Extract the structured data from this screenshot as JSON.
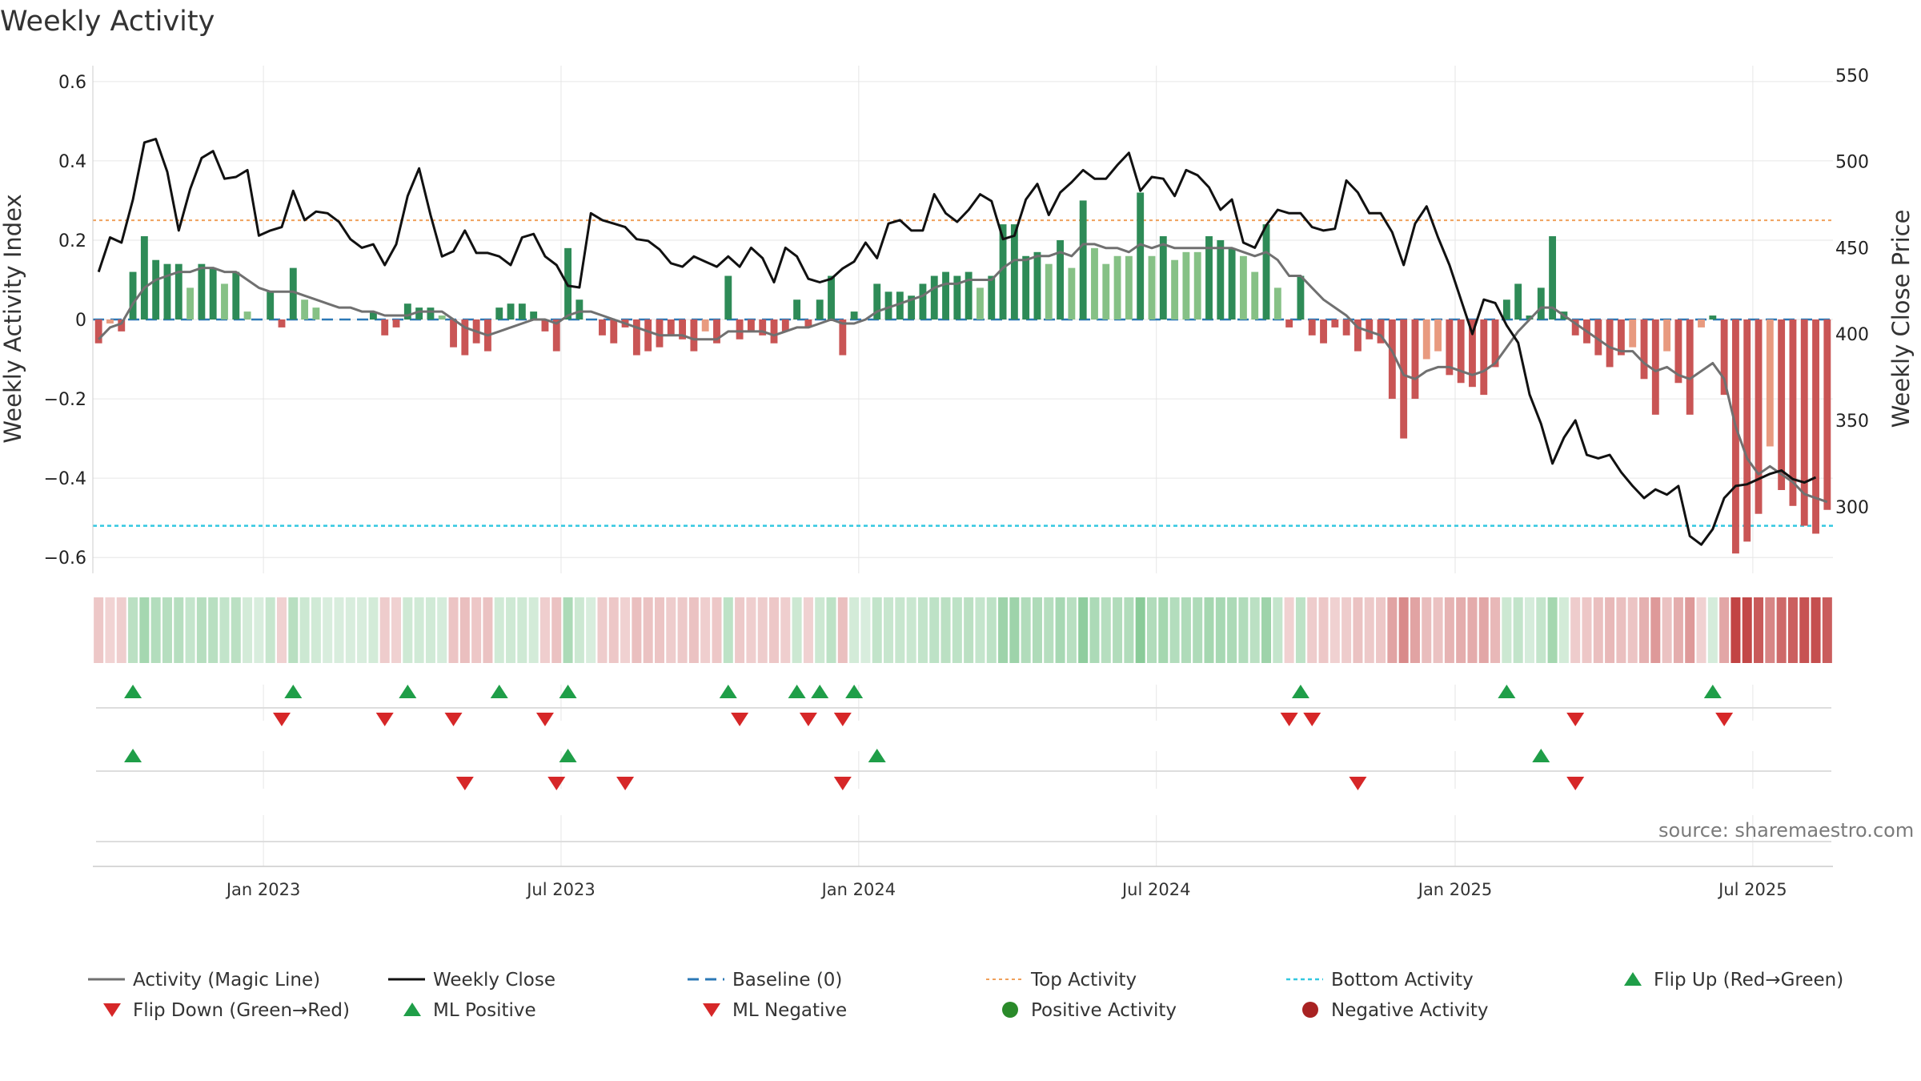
{
  "chart_data": {
    "type": "bar+line",
    "title": "Weekly Activity",
    "ylabel_left": "Weekly Activity Index",
    "ylabel_right": "Weekly Close Price",
    "left_ticks": [
      {
        "value": 0.6,
        "label": "0.6"
      },
      {
        "value": 0.4,
        "label": "0.4"
      },
      {
        "value": 0.2,
        "label": "0.2"
      },
      {
        "value": 0.0,
        "label": "0"
      },
      {
        "value": -0.2,
        "label": "−0.2"
      },
      {
        "value": -0.4,
        "label": "−0.4"
      },
      {
        "value": -0.6,
        "label": "−0.6"
      }
    ],
    "right_ticks": [
      {
        "value": 550,
        "label": "550"
      },
      {
        "value": 500,
        "label": "500"
      },
      {
        "value": 450,
        "label": "450"
      },
      {
        "value": 400,
        "label": "400"
      },
      {
        "value": 350,
        "label": "350"
      },
      {
        "value": 300,
        "label": "300"
      }
    ],
    "ylim_left": [
      -0.64,
      0.64
    ],
    "ylim_right": [
      261.4,
      555.5
    ],
    "x_tick_labels": [
      {
        "week": 14.4,
        "label": "Jan 2023"
      },
      {
        "week": 40.4,
        "label": "Jul 2023"
      },
      {
        "week": 66.4,
        "label": "Jan 2024"
      },
      {
        "week": 92.4,
        "label": "Jul 2024"
      },
      {
        "week": 118.5,
        "label": "Jan 2025"
      },
      {
        "week": 144.5,
        "label": "Jul 2025"
      }
    ],
    "reference_lines": {
      "top_activity": 0.25,
      "bottom_activity": -0.52,
      "baseline": 0
    },
    "source": "source: sharemaestro.com",
    "activity": [
      -0.06,
      -0.01,
      -0.03,
      0.12,
      0.21,
      0.15,
      0.14,
      0.14,
      0.08,
      0.14,
      0.13,
      0.09,
      0.12,
      0.02,
      0.0,
      0.07,
      -0.02,
      0.13,
      0.05,
      0.03,
      0.0,
      0.0,
      0.0,
      0.0,
      0.02,
      -0.04,
      -0.02,
      0.04,
      0.03,
      0.03,
      0.01,
      -0.07,
      -0.09,
      -0.06,
      -0.08,
      0.03,
      0.04,
      0.04,
      0.02,
      -0.03,
      -0.08,
      0.18,
      0.05,
      0.0,
      -0.04,
      -0.06,
      -0.02,
      -0.09,
      -0.08,
      -0.07,
      -0.04,
      -0.05,
      -0.08,
      -0.03,
      -0.06,
      0.11,
      -0.05,
      -0.03,
      -0.04,
      -0.06,
      -0.03,
      0.05,
      -0.02,
      0.05,
      0.11,
      -0.09,
      0.02,
      0.0,
      0.09,
      0.07,
      0.07,
      0.06,
      0.09,
      0.11,
      0.12,
      0.11,
      0.12,
      0.08,
      0.11,
      0.24,
      0.24,
      0.16,
      0.17,
      0.14,
      0.2,
      0.13,
      0.3,
      0.18,
      0.14,
      0.16,
      0.16,
      0.32,
      0.16,
      0.21,
      0.15,
      0.17,
      0.17,
      0.21,
      0.2,
      0.18,
      0.16,
      0.12,
      0.24,
      0.08,
      -0.02,
      0.11,
      -0.04,
      -0.06,
      -0.02,
      -0.04,
      -0.08,
      -0.05,
      -0.06,
      -0.2,
      -0.3,
      -0.2,
      -0.1,
      -0.08,
      -0.14,
      -0.16,
      -0.17,
      -0.19,
      -0.12,
      0.05,
      0.09,
      0.01,
      0.08,
      0.21,
      0.02,
      -0.04,
      -0.06,
      -0.09,
      -0.12,
      -0.09,
      -0.07,
      -0.15,
      -0.24,
      -0.08,
      -0.16,
      -0.24,
      -0.02,
      0.01,
      -0.19,
      -0.59,
      -0.56,
      -0.49,
      -0.32,
      -0.43,
      -0.47,
      -0.52,
      -0.54,
      -0.48
    ],
    "magic_line": [
      -0.05,
      -0.02,
      -0.01,
      0.04,
      0.08,
      0.1,
      0.11,
      0.12,
      0.12,
      0.13,
      0.13,
      0.12,
      0.12,
      0.1,
      0.08,
      0.07,
      0.07,
      0.07,
      0.06,
      0.05,
      0.04,
      0.03,
      0.03,
      0.02,
      0.02,
      0.01,
      0.01,
      0.01,
      0.02,
      0.02,
      0.02,
      0.0,
      -0.02,
      -0.03,
      -0.04,
      -0.03,
      -0.02,
      -0.01,
      0.0,
      0.0,
      -0.01,
      0.01,
      0.02,
      0.02,
      0.01,
      0.0,
      -0.01,
      -0.02,
      -0.03,
      -0.04,
      -0.04,
      -0.04,
      -0.05,
      -0.05,
      -0.05,
      -0.03,
      -0.03,
      -0.03,
      -0.03,
      -0.04,
      -0.03,
      -0.02,
      -0.02,
      -0.01,
      0.0,
      -0.01,
      -0.01,
      0.0,
      0.02,
      0.03,
      0.04,
      0.05,
      0.06,
      0.08,
      0.09,
      0.09,
      0.1,
      0.1,
      0.1,
      0.13,
      0.15,
      0.15,
      0.16,
      0.16,
      0.17,
      0.16,
      0.19,
      0.19,
      0.18,
      0.18,
      0.17,
      0.19,
      0.18,
      0.19,
      0.18,
      0.18,
      0.18,
      0.18,
      0.18,
      0.18,
      0.17,
      0.16,
      0.17,
      0.15,
      0.11,
      0.11,
      0.08,
      0.05,
      0.03,
      0.01,
      -0.02,
      -0.03,
      -0.04,
      -0.08,
      -0.14,
      -0.15,
      -0.13,
      -0.12,
      -0.12,
      -0.13,
      -0.14,
      -0.13,
      -0.11,
      -0.07,
      -0.03,
      0.0,
      0.03,
      0.03,
      0.01,
      -0.01,
      -0.03,
      -0.05,
      -0.07,
      -0.08,
      -0.08,
      -0.11,
      -0.13,
      -0.12,
      -0.14,
      -0.15,
      -0.13,
      -0.11,
      -0.15,
      -0.27,
      -0.35,
      -0.39,
      -0.37,
      -0.39,
      -0.41,
      -0.44,
      -0.45,
      -0.46
    ],
    "close": [
      436,
      456,
      453,
      478,
      511,
      513,
      494,
      460,
      484,
      502,
      506,
      490,
      491,
      495,
      457,
      460,
      462,
      483,
      466,
      471,
      470,
      465,
      455,
      450,
      452,
      440,
      452,
      480,
      496,
      469,
      445,
      448,
      460,
      447,
      447,
      445,
      440,
      456,
      458,
      445,
      440,
      428,
      427,
      470,
      466,
      464,
      462,
      455,
      454,
      449,
      441,
      439,
      445,
      442,
      439,
      445,
      439,
      450,
      444,
      430,
      450,
      445,
      432,
      430,
      432,
      438,
      442,
      453,
      444,
      464,
      466,
      460,
      460,
      481,
      470,
      465,
      472,
      481,
      477,
      455,
      457,
      478,
      487,
      469,
      482,
      488,
      495,
      490,
      490,
      498,
      505,
      483,
      491,
      490,
      480,
      495,
      492,
      485,
      472,
      478,
      453,
      450,
      463,
      472,
      470,
      470,
      462,
      460,
      461,
      489,
      482,
      470,
      470,
      459,
      440,
      464,
      474,
      456,
      440,
      420,
      400,
      420,
      418,
      405,
      395,
      365,
      348,
      325,
      340,
      350,
      330,
      328,
      330,
      320,
      312,
      305,
      310,
      307,
      312,
      283,
      278,
      287,
      305,
      312,
      313,
      316,
      319,
      321,
      316,
      314,
      317
    ]
  },
  "legend": [
    {
      "label": "Activity (Magic Line)",
      "marker": "grey-line"
    },
    {
      "label": "Weekly Close",
      "marker": "black-line"
    },
    {
      "label": "Baseline (0)",
      "marker": "blue-dashed-line"
    },
    {
      "label": "Top Activity",
      "marker": "orange-dotted-line"
    },
    {
      "label": "Bottom Activity",
      "marker": "cyan-dotted-line"
    },
    {
      "label": "Flip Up (Red→Green)",
      "marker": "green-up-triangle"
    },
    {
      "label": "Flip Down (Green→Red)",
      "marker": "red-down-triangle"
    },
    {
      "label": "ML Positive",
      "marker": "green-up-triangle"
    },
    {
      "label": "ML Negative",
      "marker": "red-down-triangle"
    },
    {
      "label": "Positive Activity",
      "marker": "green-circle"
    },
    {
      "label": "Negative Activity",
      "marker": "red-circle"
    }
  ],
  "colors": {
    "pos_strong": "#2e8b57",
    "pos_light": "#86c186",
    "neg_strong": "#c95555",
    "neg_light": "#e89a7f",
    "close": "#111111",
    "magic": "#707070",
    "baseline": "#2b78b6",
    "top": "#f0a05a",
    "bottom": "#33c8e0",
    "flip_up": "#1f9e48",
    "flip_down": "#d62728",
    "grid": "#e6e6e6",
    "axis": "#cccccc",
    "pos_dot": "#2a8a2a",
    "neg_dot": "#a82222"
  }
}
